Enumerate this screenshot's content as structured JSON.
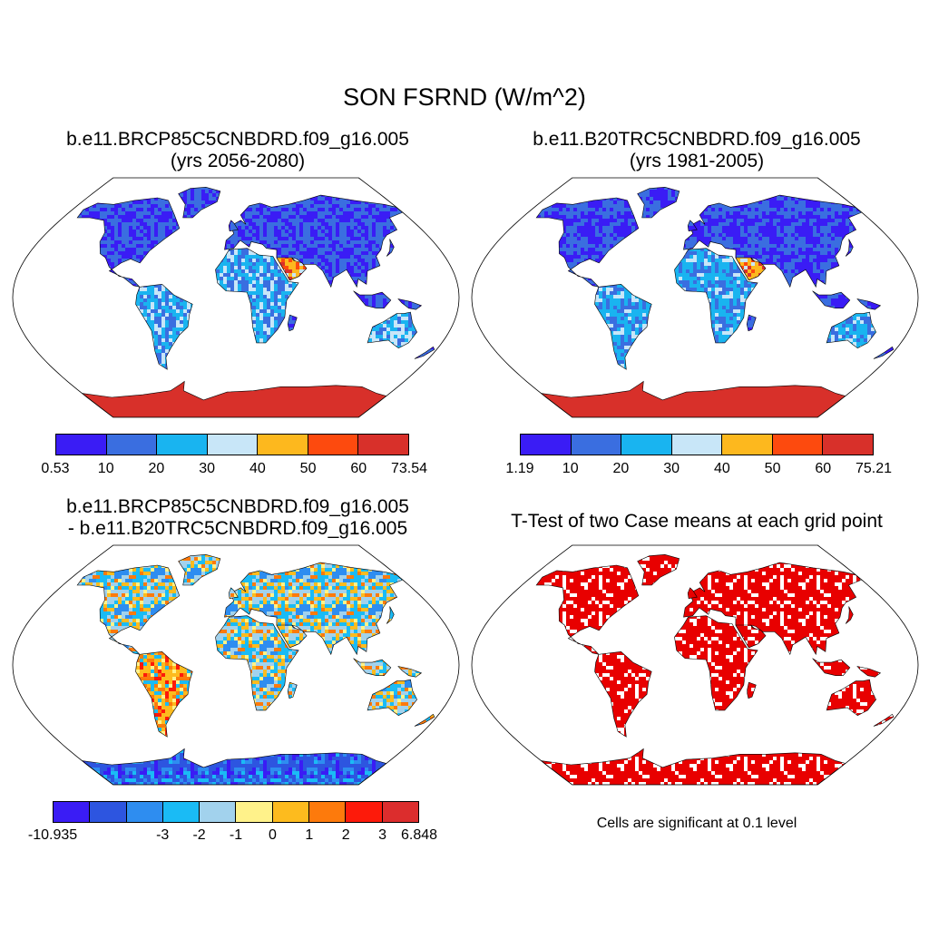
{
  "title": "SON FSRND (W/m^2)",
  "panels": [
    {
      "title_line1": "b.e11.BRCP85C5CNBDRD.f09_g16.005",
      "title_line2": "(yrs 2056-2080)"
    },
    {
      "title_line1": "b.e11.B20TRC5CNBDRD.f09_g16.005",
      "title_line2": "(yrs 1981-2005)"
    },
    {
      "title_line1": "b.e11.BRCP85C5CNBDRD.f09_g16.005",
      "title_line2": "- b.e11.B20TRC5CNBDRD.f09_g16.005"
    },
    {
      "title_line1": "T-Test of two Case means at each grid point",
      "title_line2": ""
    }
  ],
  "colorbars": [
    {
      "colors": [
        "#3a1cf5",
        "#3a6ee0",
        "#19b4f0",
        "#c8e6f8",
        "#fdb81e",
        "#fd4a0e",
        "#d8302a"
      ],
      "labels": [
        "0.53",
        "10",
        "20",
        "30",
        "40",
        "50",
        "60",
        "73.54"
      ]
    },
    {
      "colors": [
        "#3a1cf5",
        "#3a6ee0",
        "#19b4f0",
        "#c8e6f8",
        "#fdb81e",
        "#fd4a0e",
        "#d8302a"
      ],
      "labels": [
        "1.19",
        "10",
        "20",
        "30",
        "40",
        "50",
        "60",
        "75.21"
      ]
    },
    {
      "colors": [
        "#3a1cf5",
        "#2d55e0",
        "#2e8df0",
        "#1abbf5",
        "#a2d2ed",
        "#fff28a",
        "#fdbb1e",
        "#fd7a0c",
        "#fd1a0a",
        "#dc2d2d"
      ],
      "labels": [
        "-10.935",
        "-3",
        "-2",
        "-1",
        "0",
        "1",
        "2",
        "3",
        "6.848"
      ]
    }
  ],
  "significance_note": "Cells are significant at 0.1 level",
  "significance_color": "#e80000",
  "land_colors": {
    "ocean": "#ffffff",
    "coast": "#000000"
  }
}
